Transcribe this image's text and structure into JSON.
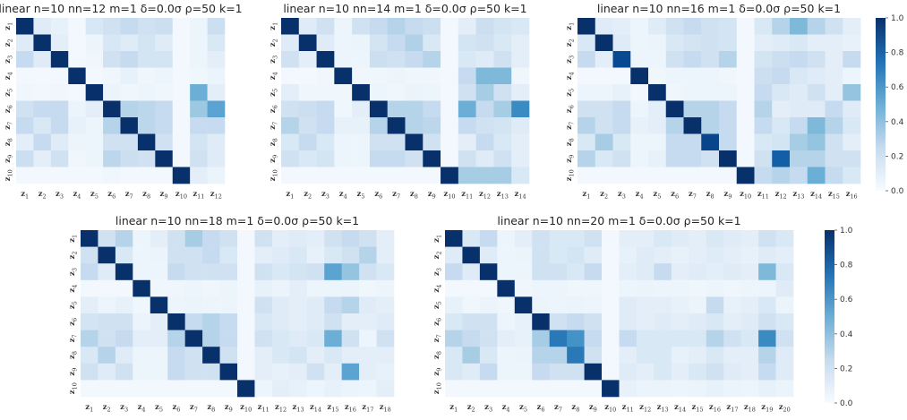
{
  "colorscale": {
    "low": "#f7fbff",
    "mid": "#6baed6",
    "high": "#08306b",
    "min": 0.0,
    "max": 1.0
  },
  "colorbar_ticks": [
    "0.0",
    "0.2",
    "0.4",
    "0.6",
    "0.8",
    "1.0"
  ],
  "chart_data": [
    {
      "type": "heatmap",
      "title": "linear n=10 nn=12 m=1 δ=0.0σ ρ=50 k=1",
      "y_labels": [
        "z1",
        "z2",
        "z3",
        "z4",
        "z5",
        "z6",
        "z7",
        "z8",
        "z9",
        "z10"
      ],
      "x_labels": [
        "z1",
        "z2",
        "z3",
        "z4",
        "z5",
        "z6",
        "z7",
        "z8",
        "z9",
        "z10",
        "z11",
        "z12"
      ],
      "values": [
        [
          1.0,
          0.12,
          0.08,
          0.02,
          0.16,
          0.2,
          0.25,
          0.2,
          0.22,
          0.02,
          0.05,
          0.22
        ],
        [
          0.12,
          1.0,
          0.1,
          0.02,
          0.05,
          0.16,
          0.12,
          0.18,
          0.12,
          0.02,
          0.05,
          0.15
        ],
        [
          0.25,
          0.12,
          1.0,
          0.02,
          0.04,
          0.2,
          0.25,
          0.18,
          0.18,
          0.02,
          0.05,
          0.1
        ],
        [
          0.02,
          0.02,
          0.02,
          1.0,
          0.02,
          0.04,
          0.08,
          0.04,
          0.05,
          0.02,
          0.04,
          0.06
        ],
        [
          0.04,
          0.03,
          0.04,
          0.02,
          1.0,
          0.06,
          0.04,
          0.05,
          0.04,
          0.02,
          0.5,
          0.1
        ],
        [
          0.2,
          0.25,
          0.25,
          0.06,
          0.1,
          1.0,
          0.3,
          0.28,
          0.25,
          0.02,
          0.38,
          0.55
        ],
        [
          0.25,
          0.15,
          0.25,
          0.08,
          0.05,
          0.3,
          1.0,
          0.28,
          0.25,
          0.02,
          0.25,
          0.25
        ],
        [
          0.1,
          0.25,
          0.12,
          0.05,
          0.05,
          0.2,
          0.2,
          1.0,
          0.2,
          0.02,
          0.18,
          0.12
        ],
        [
          0.22,
          0.1,
          0.2,
          0.04,
          0.05,
          0.28,
          0.22,
          0.2,
          1.0,
          0.02,
          0.2,
          0.12
        ],
        [
          0.02,
          0.02,
          0.02,
          0.02,
          0.02,
          0.04,
          0.02,
          0.02,
          0.02,
          1.0,
          0.1,
          0.06
        ]
      ]
    },
    {
      "type": "heatmap",
      "title": "linear n=10 nn=14 m=1 δ=0.0σ ρ=50 k=1",
      "y_labels": [
        "z1",
        "z2",
        "z3",
        "z4",
        "z5",
        "z6",
        "z7",
        "z8",
        "z9",
        "z10"
      ],
      "x_labels": [
        "z1",
        "z2",
        "z3",
        "z4",
        "z5",
        "z6",
        "z7",
        "z8",
        "z9",
        "z10",
        "z11",
        "z12",
        "z13",
        "z14"
      ],
      "values": [
        [
          1.0,
          0.12,
          0.2,
          0.05,
          0.2,
          0.25,
          0.3,
          0.25,
          0.22,
          0.02,
          0.1,
          0.22,
          0.18,
          0.15
        ],
        [
          0.12,
          1.0,
          0.12,
          0.05,
          0.06,
          0.18,
          0.25,
          0.32,
          0.15,
          0.02,
          0.18,
          0.2,
          0.15,
          0.1
        ],
        [
          0.2,
          0.1,
          1.0,
          0.05,
          0.05,
          0.22,
          0.2,
          0.25,
          0.3,
          0.02,
          0.15,
          0.12,
          0.2,
          0.1
        ],
        [
          0.02,
          0.02,
          0.04,
          1.0,
          0.04,
          0.04,
          0.05,
          0.04,
          0.04,
          0.02,
          0.25,
          0.45,
          0.45,
          0.04
        ],
        [
          0.1,
          0.04,
          0.04,
          0.04,
          1.0,
          0.05,
          0.04,
          0.06,
          0.05,
          0.02,
          0.2,
          0.35,
          0.2,
          0.1
        ],
        [
          0.2,
          0.22,
          0.25,
          0.04,
          0.1,
          1.0,
          0.3,
          0.3,
          0.25,
          0.02,
          0.5,
          0.25,
          0.35,
          0.65
        ],
        [
          0.3,
          0.2,
          0.25,
          0.08,
          0.08,
          0.3,
          1.0,
          0.3,
          0.28,
          0.02,
          0.25,
          0.2,
          0.18,
          0.12
        ],
        [
          0.15,
          0.25,
          0.15,
          0.05,
          0.05,
          0.2,
          0.2,
          1.0,
          0.2,
          0.02,
          0.1,
          0.25,
          0.15,
          0.1
        ],
        [
          0.2,
          0.15,
          0.18,
          0.05,
          0.05,
          0.25,
          0.25,
          0.2,
          1.0,
          0.02,
          0.2,
          0.12,
          0.2,
          0.1
        ],
        [
          0.02,
          0.02,
          0.02,
          0.02,
          0.02,
          0.02,
          0.02,
          0.02,
          0.02,
          1.0,
          0.35,
          0.35,
          0.35,
          0.15
        ]
      ]
    },
    {
      "type": "heatmap",
      "title": "linear n=10 nn=16 m=1 δ=0.0σ ρ=50 k=1",
      "y_labels": [
        "z1",
        "z2",
        "z3",
        "z4",
        "z5",
        "z6",
        "z7",
        "z8",
        "z9",
        "z10"
      ],
      "x_labels": [
        "z1",
        "z2",
        "z3",
        "z4",
        "z5",
        "z6",
        "z7",
        "z8",
        "z9",
        "z10",
        "z11",
        "z12",
        "z13",
        "z14",
        "z15",
        "z16"
      ],
      "values": [
        [
          1.0,
          0.12,
          0.1,
          0.05,
          0.12,
          0.2,
          0.25,
          0.2,
          0.18,
          0.02,
          0.15,
          0.3,
          0.45,
          0.3,
          0.2,
          0.1
        ],
        [
          0.15,
          1.0,
          0.12,
          0.05,
          0.06,
          0.15,
          0.18,
          0.2,
          0.18,
          0.02,
          0.1,
          0.12,
          0.15,
          0.1,
          0.1,
          0.08
        ],
        [
          0.25,
          0.1,
          0.9,
          0.05,
          0.05,
          0.2,
          0.25,
          0.2,
          0.3,
          0.02,
          0.18,
          0.22,
          0.25,
          0.2,
          0.1,
          0.25
        ],
        [
          0.02,
          0.02,
          0.02,
          1.0,
          0.04,
          0.05,
          0.05,
          0.05,
          0.04,
          0.02,
          0.22,
          0.25,
          0.15,
          0.12,
          0.1,
          0.05
        ],
        [
          0.05,
          0.05,
          0.08,
          0.03,
          1.0,
          0.04,
          0.05,
          0.05,
          0.05,
          0.02,
          0.25,
          0.15,
          0.12,
          0.2,
          0.1,
          0.4
        ],
        [
          0.2,
          0.2,
          0.25,
          0.05,
          0.1,
          1.0,
          0.3,
          0.3,
          0.25,
          0.02,
          0.3,
          0.1,
          0.12,
          0.12,
          0.25,
          0.12
        ],
        [
          0.3,
          0.2,
          0.25,
          0.08,
          0.1,
          0.3,
          1.0,
          0.3,
          0.25,
          0.02,
          0.25,
          0.15,
          0.25,
          0.45,
          0.3,
          0.15
        ],
        [
          0.15,
          0.35,
          0.15,
          0.05,
          0.05,
          0.25,
          0.25,
          0.92,
          0.25,
          0.02,
          0.15,
          0.18,
          0.35,
          0.4,
          0.2,
          0.1
        ],
        [
          0.3,
          0.15,
          0.2,
          0.05,
          0.08,
          0.25,
          0.25,
          0.2,
          1.0,
          0.02,
          0.2,
          0.82,
          0.3,
          0.3,
          0.2,
          0.2
        ],
        [
          0.02,
          0.02,
          0.02,
          0.02,
          0.02,
          0.02,
          0.02,
          0.02,
          0.02,
          1.0,
          0.25,
          0.3,
          0.25,
          0.5,
          0.25,
          0.15
        ]
      ]
    },
    {
      "type": "heatmap",
      "title": "linear n=10 nn=18 m=1 δ=0.0σ ρ=50 k=1",
      "y_labels": [
        "z1",
        "z2",
        "z3",
        "z4",
        "z5",
        "z6",
        "z7",
        "z8",
        "z9",
        "z10"
      ],
      "x_labels": [
        "z1",
        "z2",
        "z3",
        "z4",
        "z5",
        "z6",
        "z7",
        "z8",
        "z9",
        "z10",
        "z11",
        "z12",
        "z13",
        "z14",
        "z15",
        "z16",
        "z17",
        "z18"
      ],
      "values": [
        [
          1.0,
          0.2,
          0.3,
          0.05,
          0.1,
          0.2,
          0.35,
          0.25,
          0.2,
          0.02,
          0.2,
          0.1,
          0.12,
          0.1,
          0.2,
          0.25,
          0.2,
          0.1
        ],
        [
          0.2,
          1.0,
          0.15,
          0.05,
          0.06,
          0.2,
          0.2,
          0.25,
          0.15,
          0.02,
          0.1,
          0.12,
          0.15,
          0.08,
          0.15,
          0.2,
          0.3,
          0.1
        ],
        [
          0.25,
          0.12,
          1.0,
          0.05,
          0.05,
          0.25,
          0.2,
          0.2,
          0.2,
          0.02,
          0.2,
          0.15,
          0.18,
          0.2,
          0.55,
          0.4,
          0.2,
          0.15
        ],
        [
          0.02,
          0.02,
          0.02,
          1.0,
          0.04,
          0.04,
          0.05,
          0.04,
          0.05,
          0.02,
          0.08,
          0.06,
          0.1,
          0.05,
          0.05,
          0.06,
          0.04,
          0.05
        ],
        [
          0.1,
          0.05,
          0.08,
          0.04,
          1.0,
          0.05,
          0.06,
          0.05,
          0.05,
          0.02,
          0.2,
          0.12,
          0.1,
          0.12,
          0.25,
          0.3,
          0.12,
          0.1
        ],
        [
          0.18,
          0.2,
          0.2,
          0.06,
          0.1,
          1.0,
          0.25,
          0.3,
          0.25,
          0.02,
          0.15,
          0.12,
          0.1,
          0.12,
          0.2,
          0.1,
          0.1,
          0.12
        ],
        [
          0.3,
          0.2,
          0.25,
          0.1,
          0.1,
          0.3,
          1.0,
          0.3,
          0.25,
          0.02,
          0.2,
          0.15,
          0.12,
          0.15,
          0.5,
          0.2,
          0.05,
          0.2
        ],
        [
          0.15,
          0.3,
          0.12,
          0.05,
          0.05,
          0.25,
          0.2,
          1.0,
          0.2,
          0.02,
          0.1,
          0.15,
          0.18,
          0.1,
          0.15,
          0.1,
          0.1,
          0.1
        ],
        [
          0.2,
          0.12,
          0.2,
          0.05,
          0.05,
          0.25,
          0.2,
          0.2,
          1.0,
          0.02,
          0.1,
          0.08,
          0.1,
          0.2,
          0.1,
          0.55,
          0.1,
          0.08
        ],
        [
          0.02,
          0.02,
          0.02,
          0.02,
          0.02,
          0.02,
          0.02,
          0.02,
          0.02,
          1.0,
          0.05,
          0.1,
          0.08,
          0.05,
          0.08,
          0.06,
          0.05,
          0.1
        ]
      ]
    },
    {
      "type": "heatmap",
      "title": "linear n=10 nn=20 m=1 δ=0.0σ ρ=50 k=1",
      "y_labels": [
        "z1",
        "z2",
        "z3",
        "z4",
        "z5",
        "z6",
        "z7",
        "z8",
        "z9",
        "z10"
      ],
      "x_labels": [
        "z1",
        "z2",
        "z3",
        "z4",
        "z5",
        "z6",
        "z7",
        "z8",
        "z9",
        "z10",
        "z11",
        "z12",
        "z13",
        "z14",
        "z15",
        "z16",
        "z17",
        "z18",
        "z19",
        "z20"
      ],
      "values": [
        [
          1.0,
          0.15,
          0.25,
          0.05,
          0.1,
          0.2,
          0.15,
          0.15,
          0.2,
          0.02,
          0.1,
          0.1,
          0.15,
          0.12,
          0.1,
          0.15,
          0.12,
          0.1,
          0.2,
          0.15
        ],
        [
          0.12,
          1.0,
          0.12,
          0.05,
          0.06,
          0.2,
          0.15,
          0.18,
          0.12,
          0.02,
          0.08,
          0.12,
          0.1,
          0.08,
          0.1,
          0.12,
          0.1,
          0.08,
          0.12,
          0.1
        ],
        [
          0.25,
          0.12,
          1.0,
          0.05,
          0.05,
          0.2,
          0.2,
          0.15,
          0.25,
          0.02,
          0.1,
          0.12,
          0.25,
          0.1,
          0.12,
          0.1,
          0.12,
          0.1,
          0.45,
          0.15
        ],
        [
          0.02,
          0.02,
          0.02,
          1.0,
          0.04,
          0.05,
          0.05,
          0.04,
          0.04,
          0.02,
          0.05,
          0.06,
          0.05,
          0.05,
          0.04,
          0.05,
          0.04,
          0.05,
          0.05,
          0.12
        ],
        [
          0.08,
          0.04,
          0.06,
          0.04,
          1.0,
          0.06,
          0.05,
          0.06,
          0.05,
          0.02,
          0.12,
          0.1,
          0.1,
          0.08,
          0.06,
          0.25,
          0.08,
          0.1,
          0.15,
          0.06
        ],
        [
          0.15,
          0.2,
          0.2,
          0.05,
          0.08,
          1.0,
          0.2,
          0.25,
          0.2,
          0.02,
          0.12,
          0.1,
          0.12,
          0.1,
          0.12,
          0.15,
          0.1,
          0.12,
          0.2,
          0.15
        ],
        [
          0.3,
          0.25,
          0.2,
          0.1,
          0.08,
          0.35,
          0.72,
          0.62,
          0.25,
          0.02,
          0.25,
          0.15,
          0.15,
          0.15,
          0.15,
          0.3,
          0.2,
          0.15,
          0.65,
          0.2
        ],
        [
          0.15,
          0.35,
          0.15,
          0.05,
          0.06,
          0.3,
          0.3,
          0.72,
          0.2,
          0.02,
          0.1,
          0.15,
          0.15,
          0.08,
          0.1,
          0.15,
          0.1,
          0.1,
          0.3,
          0.12
        ],
        [
          0.15,
          0.12,
          0.25,
          0.05,
          0.05,
          0.25,
          0.2,
          0.2,
          1.0,
          0.02,
          0.12,
          0.1,
          0.15,
          0.1,
          0.15,
          0.2,
          0.12,
          0.1,
          0.25,
          0.12
        ],
        [
          0.02,
          0.02,
          0.02,
          0.02,
          0.02,
          0.02,
          0.02,
          0.02,
          0.02,
          1.0,
          0.08,
          0.06,
          0.06,
          0.05,
          0.06,
          0.08,
          0.06,
          0.05,
          0.08,
          0.06
        ]
      ]
    }
  ]
}
